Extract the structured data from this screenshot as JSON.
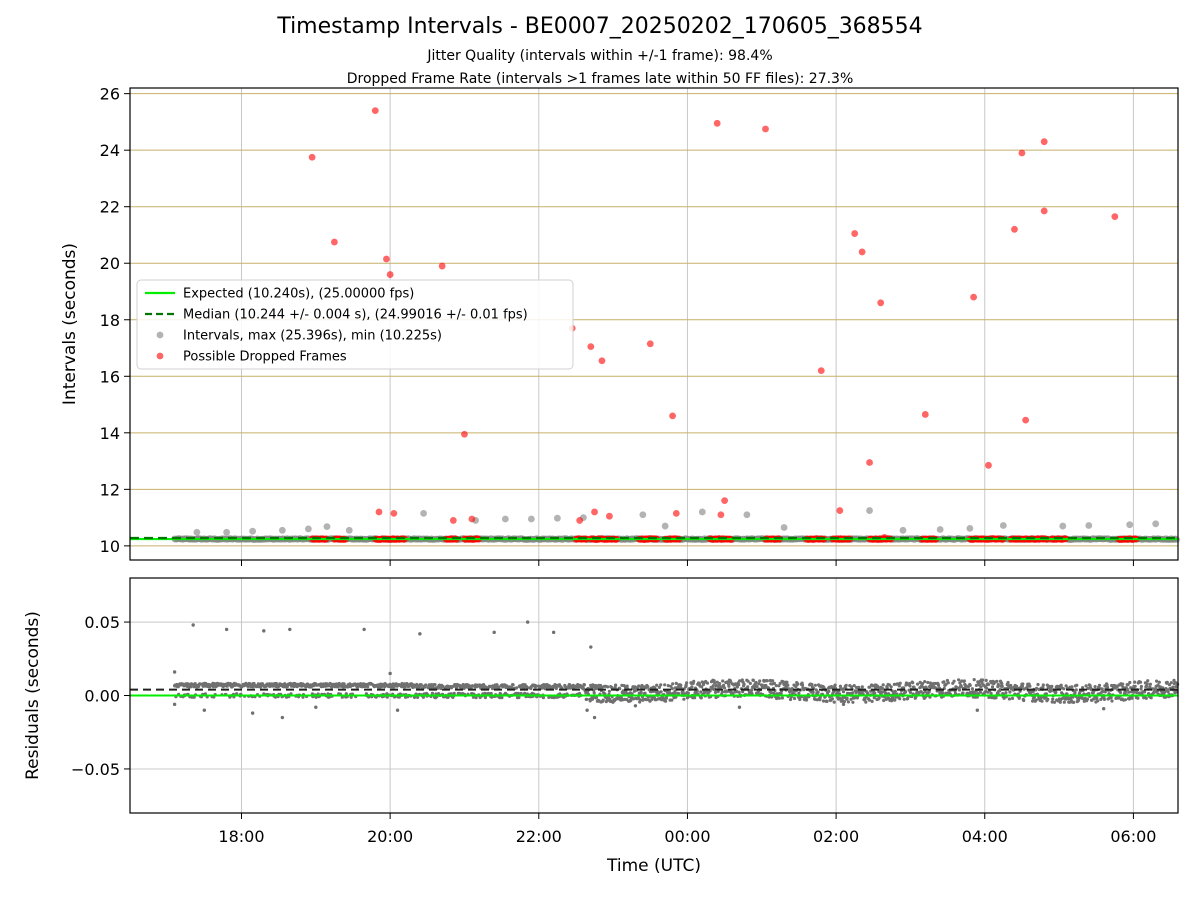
{
  "figure": {
    "title": "Timestamp Intervals - BE0007_20250202_170605_368554",
    "subtitle_line1": "Jitter Quality (intervals within +/-1 frame): 98.4%",
    "subtitle_line2": "Dropped Frame Rate (intervals >1 frames late within 50 FF files): 27.3%"
  },
  "colors": {
    "expected": "#00ee00",
    "median": "#007700",
    "intervals": "#808080",
    "dropped": "#ff0000",
    "hgrid_top": "#c8b068",
    "grid": "#c8c8c8"
  },
  "chart_data": [
    {
      "type": "scatter",
      "ylabel": "Intervals (seconds)",
      "x_range_hours": [
        16.5,
        30.6
      ],
      "ylim": [
        9.5,
        26.2
      ],
      "y_ticks": [
        10,
        12,
        14,
        16,
        18,
        20,
        22,
        24,
        26
      ],
      "y_tick_labels": [
        "10",
        "12",
        "14",
        "16",
        "18",
        "20",
        "22",
        "24",
        "26"
      ],
      "x_ticks_hours": [
        18,
        20,
        22,
        24,
        26,
        28,
        30
      ],
      "grid": true,
      "legend_position": "center-left",
      "expected_value": 10.24,
      "median_value": 10.244,
      "legend": [
        "Expected (10.240s), (25.00000 fps)",
        "Median (10.244 +/- 0.004 s), (24.99016 +/- 0.01 fps)",
        "Intervals, max (25.396s), min (10.225s)",
        "Possible Dropped Frames"
      ],
      "series": [
        {
          "name": "Intervals, max (25.396s), min (10.225s)",
          "x_start": 17.1,
          "x_end": 30.6,
          "baseline": 10.24,
          "points": [
            [
              17.4,
              10.48
            ],
            [
              17.8,
              10.48
            ],
            [
              18.15,
              10.52
            ],
            [
              18.55,
              10.55
            ],
            [
              18.9,
              10.6
            ],
            [
              19.15,
              10.68
            ],
            [
              19.45,
              10.55
            ],
            [
              20.45,
              11.15
            ],
            [
              21.15,
              10.9
            ],
            [
              21.55,
              10.95
            ],
            [
              21.9,
              10.95
            ],
            [
              22.25,
              10.98
            ],
            [
              22.6,
              11.0
            ],
            [
              23.4,
              11.1
            ],
            [
              23.7,
              10.7
            ],
            [
              24.2,
              11.2
            ],
            [
              24.8,
              11.1
            ],
            [
              25.3,
              10.65
            ],
            [
              26.45,
              11.25
            ],
            [
              26.9,
              10.55
            ],
            [
              27.4,
              10.58
            ],
            [
              27.8,
              10.62
            ],
            [
              28.25,
              10.72
            ],
            [
              29.05,
              10.7
            ],
            [
              29.4,
              10.72
            ],
            [
              29.95,
              10.75
            ],
            [
              30.3,
              10.78
            ]
          ]
        },
        {
          "name": "Possible Dropped Frames",
          "baseline": 10.24,
          "clusters": [
            [
              18.95,
              19.15
            ],
            [
              19.25,
              19.4
            ],
            [
              19.8,
              20.2
            ],
            [
              20.75,
              20.9
            ],
            [
              21.0,
              21.2
            ],
            [
              22.5,
              22.65
            ],
            [
              22.7,
              23.05
            ],
            [
              23.35,
              23.6
            ],
            [
              23.7,
              23.9
            ],
            [
              24.3,
              24.6
            ],
            [
              25.05,
              25.25
            ],
            [
              25.6,
              25.85
            ],
            [
              25.95,
              26.2
            ],
            [
              26.45,
              26.75
            ],
            [
              27.15,
              27.35
            ],
            [
              27.8,
              28.25
            ],
            [
              28.35,
              28.85
            ],
            [
              28.9,
              29.1
            ],
            [
              29.8,
              30.05
            ]
          ],
          "points": [
            [
              18.95,
              23.75
            ],
            [
              19.25,
              20.75
            ],
            [
              19.8,
              25.4
            ],
            [
              19.95,
              20.15
            ],
            [
              20.0,
              19.6
            ],
            [
              20.7,
              19.9
            ],
            [
              21.0,
              13.95
            ],
            [
              22.45,
              17.7
            ],
            [
              22.7,
              17.05
            ],
            [
              22.85,
              16.55
            ],
            [
              23.5,
              17.15
            ],
            [
              23.8,
              14.6
            ],
            [
              24.4,
              24.95
            ],
            [
              25.05,
              24.75
            ],
            [
              25.8,
              16.2
            ],
            [
              26.25,
              21.05
            ],
            [
              26.35,
              20.4
            ],
            [
              26.6,
              18.6
            ],
            [
              26.45,
              12.95
            ],
            [
              27.2,
              14.65
            ],
            [
              27.85,
              18.8
            ],
            [
              28.05,
              12.85
            ],
            [
              28.4,
              21.2
            ],
            [
              28.5,
              23.9
            ],
            [
              28.55,
              14.45
            ],
            [
              28.8,
              24.3
            ],
            [
              28.8,
              21.85
            ],
            [
              29.75,
              21.65
            ],
            [
              19.85,
              11.2
            ],
            [
              20.05,
              11.15
            ],
            [
              20.85,
              10.9
            ],
            [
              21.1,
              10.95
            ],
            [
              22.55,
              10.9
            ],
            [
              22.75,
              11.2
            ],
            [
              22.95,
              11.05
            ],
            [
              23.85,
              11.15
            ],
            [
              24.45,
              11.1
            ],
            [
              24.5,
              11.6
            ],
            [
              26.05,
              11.25
            ],
            [
              26.65,
              10.3
            ]
          ]
        }
      ]
    },
    {
      "type": "scatter",
      "ylabel": "Residuals (seconds)",
      "xlabel": "Time (UTC)",
      "x_range_hours": [
        16.5,
        30.6
      ],
      "ylim": [
        -0.08,
        0.08
      ],
      "y_ticks": [
        -0.05,
        0.0,
        0.05
      ],
      "y_tick_labels": [
        "−0.05",
        "0.00",
        "0.05"
      ],
      "x_ticks_hours": [
        18,
        20,
        22,
        24,
        26,
        28,
        30
      ],
      "x_tick_labels": [
        "18:00",
        "20:00",
        "22:00",
        "00:00",
        "02:00",
        "04:00",
        "06:00"
      ],
      "grid": true,
      "expected_value": 0.0,
      "median_value": 0.004,
      "series": [
        {
          "name": "Residuals",
          "x_start": 17.1,
          "x_end": 30.6,
          "outliers": [
            [
              17.1,
              0.016
            ],
            [
              17.1,
              -0.006
            ],
            [
              17.35,
              0.048
            ],
            [
              17.8,
              0.045
            ],
            [
              18.3,
              0.044
            ],
            [
              18.65,
              0.045
            ],
            [
              19.65,
              0.045
            ],
            [
              20.4,
              0.042
            ],
            [
              21.4,
              0.043
            ],
            [
              21.85,
              0.05
            ],
            [
              22.2,
              0.043
            ],
            [
              22.7,
              0.033
            ],
            [
              18.15,
              -0.012
            ],
            [
              18.55,
              -0.015
            ],
            [
              17.5,
              -0.01
            ],
            [
              19.0,
              -0.008
            ],
            [
              20.0,
              0.015
            ],
            [
              20.1,
              -0.01
            ],
            [
              22.75,
              -0.015
            ],
            [
              22.65,
              -0.01
            ],
            [
              23.3,
              -0.007
            ],
            [
              24.7,
              -0.008
            ],
            [
              26.1,
              -0.006
            ],
            [
              27.9,
              -0.01
            ],
            [
              29.6,
              -0.009
            ]
          ]
        }
      ]
    }
  ]
}
